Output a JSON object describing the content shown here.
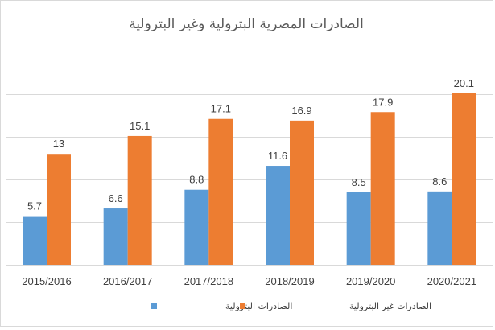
{
  "chart_data": {
    "type": "bar",
    "title": "الصادرات المصرية البترولية وغير البترولية",
    "categories": [
      "2015/2016",
      "2016/2017",
      "2017/2018",
      "2018/2019",
      "2019/2020",
      "2020/2021"
    ],
    "series": [
      {
        "name": "الصادرات البترولية",
        "color": "#5B9BD5",
        "values": [
          5.7,
          6.6,
          8.8,
          11.6,
          8.5,
          8.6
        ]
      },
      {
        "name": "الصادرات غير البترولية",
        "color": "#ED7D31",
        "values": [
          13,
          15.1,
          17.1,
          16.9,
          17.9,
          20.1
        ]
      }
    ],
    "ylim": [
      0,
      25
    ],
    "gridlines": [
      0,
      5,
      10,
      15,
      20,
      25
    ],
    "y_axis_labels_shown": false,
    "grid": true,
    "legend_position": "bottom",
    "xlabel": "",
    "ylabel": ""
  }
}
